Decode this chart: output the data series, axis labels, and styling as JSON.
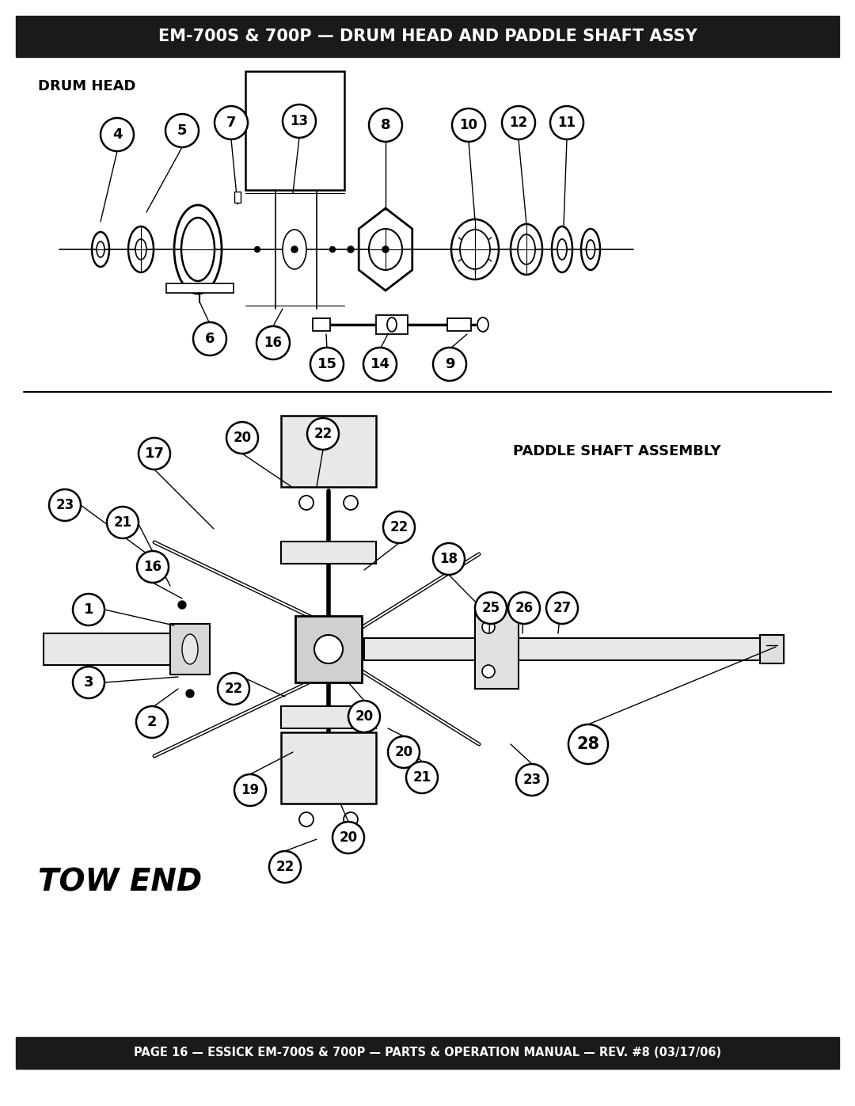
{
  "title": "EM-700S & 700P — DRUM HEAD AND PADDLE SHAFT ASSY",
  "footer": "PAGE 16 — ESSICK EM-700S & 700P — PARTS & OPERATION MANUAL — REV. #8 (03/17/06)",
  "section1_label": "DRUM HEAD",
  "section2_label": "PADDLE SHAFT ASSEMBLY",
  "tow_end_label": "TOW END",
  "bg_color": "#ffffff",
  "header_bg": "#1a1a1a",
  "header_text_color": "#ffffff",
  "footer_bg": "#1a1a1a",
  "footer_text_color": "#ffffff",
  "line_color": "#000000"
}
